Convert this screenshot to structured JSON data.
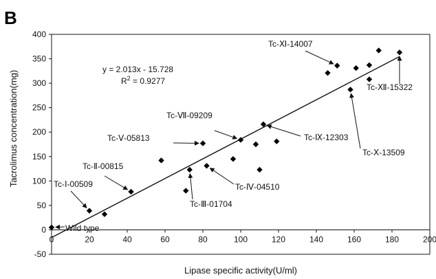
{
  "panel_label": "B",
  "chart_data": {
    "type": "scatter",
    "xlabel": "Lipase specific activity(U/ml)",
    "ylabel": "Tacrolimus concentration(mg)",
    "xlim": [
      0,
      200
    ],
    "ylim": [
      -50,
      400
    ],
    "xticks": [
      0,
      20,
      40,
      60,
      80,
      100,
      120,
      140,
      160,
      180,
      200
    ],
    "yticks": [
      -50,
      0,
      50,
      100,
      150,
      200,
      250,
      300,
      350,
      400
    ],
    "grid": false,
    "marker_color": "#000000",
    "points": [
      {
        "x": 0,
        "y": 5
      },
      {
        "x": 20,
        "y": 39
      },
      {
        "x": 28,
        "y": 32
      },
      {
        "x": 42,
        "y": 78
      },
      {
        "x": 58,
        "y": 142
      },
      {
        "x": 71,
        "y": 80
      },
      {
        "x": 73,
        "y": 123
      },
      {
        "x": 80,
        "y": 177
      },
      {
        "x": 82,
        "y": 131
      },
      {
        "x": 96,
        "y": 145
      },
      {
        "x": 100,
        "y": 184
      },
      {
        "x": 108,
        "y": 175
      },
      {
        "x": 110,
        "y": 123
      },
      {
        "x": 112,
        "y": 216
      },
      {
        "x": 119,
        "y": 181
      },
      {
        "x": 146,
        "y": 321
      },
      {
        "x": 151,
        "y": 336
      },
      {
        "x": 158,
        "y": 287
      },
      {
        "x": 161,
        "y": 331
      },
      {
        "x": 168,
        "y": 337
      },
      {
        "x": 168,
        "y": 308
      },
      {
        "x": 173,
        "y": 367
      },
      {
        "x": 184,
        "y": 363
      }
    ],
    "trendline": {
      "slope": 2.013,
      "intercept": -15.728,
      "equation": "y = 2.013x - 15.728",
      "r2_prefix": "R",
      "r2_exp": "2",
      "r2_value": " = 0.9277"
    },
    "annotations": [
      {
        "label": "Wild type",
        "point_x": 0,
        "point_y": 5
      },
      {
        "label": "Tc-Ⅰ-00509",
        "point_x": 20,
        "point_y": 39
      },
      {
        "label": "Tc-Ⅱ-00815",
        "point_x": 42,
        "point_y": 78
      },
      {
        "label": "Tc-Ⅲ-01704",
        "point_x": 73,
        "point_y": 123
      },
      {
        "label": "Tc-Ⅳ-04510",
        "point_x": 82,
        "point_y": 131
      },
      {
        "label": "Tc-Ⅴ-05813",
        "point_x": 80,
        "point_y": 177
      },
      {
        "label": "Tc-Ⅶ-09209",
        "point_x": 100,
        "point_y": 184
      },
      {
        "label": "Tc-Ⅸ-12303",
        "point_x": 112,
        "point_y": 216
      },
      {
        "label": "Tc-Ⅹ-13509",
        "point_x": 158,
        "point_y": 287
      },
      {
        "label": "Tc-Ⅺ-14007",
        "point_x": 151,
        "point_y": 336
      },
      {
        "label": "Tc-Ⅻ-15322",
        "point_x": 184,
        "point_y": 363
      }
    ]
  }
}
